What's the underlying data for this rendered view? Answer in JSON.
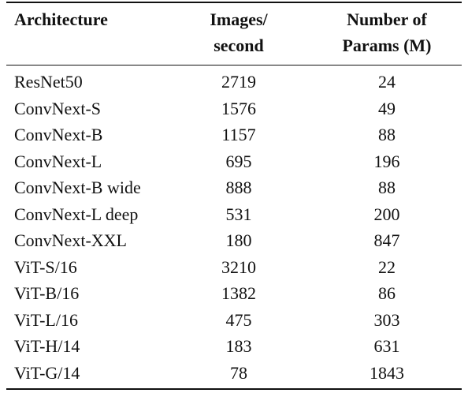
{
  "table": {
    "header": [
      [
        "Architecture"
      ],
      [
        "Images/",
        "second"
      ],
      [
        "Number of",
        "Params (M)"
      ]
    ],
    "rows": [
      [
        "ResNet50",
        2719,
        24
      ],
      [
        "ConvNext-S",
        1576,
        49
      ],
      [
        "ConvNext-B",
        1157,
        88
      ],
      [
        "ConvNext-L",
        695,
        196
      ],
      [
        "ConvNext-B wide",
        888,
        88
      ],
      [
        "ConvNext-L deep",
        531,
        200
      ],
      [
        "ConvNext-XXL",
        180,
        847
      ],
      [
        "ViT-S/16",
        3210,
        22
      ],
      [
        "ViT-B/16",
        1382,
        86
      ],
      [
        "ViT-L/16",
        475,
        303
      ],
      [
        "ViT-H/14",
        183,
        631
      ],
      [
        "ViT-G/14",
        78,
        1843
      ]
    ]
  }
}
